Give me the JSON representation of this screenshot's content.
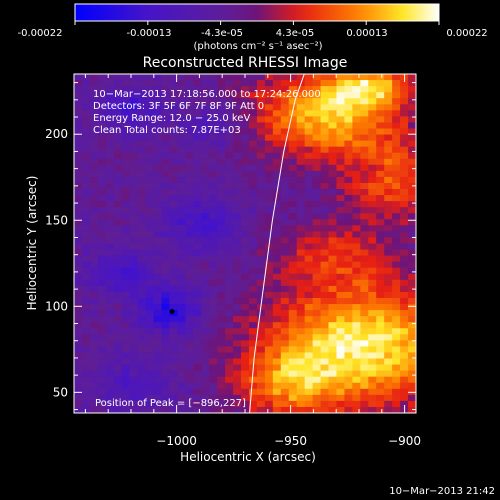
{
  "colorbar": {
    "ticks": [
      "-0.00022",
      "-0.00013",
      "-4.3e-05",
      "4.3e-05",
      "0.00013",
      "0.00022"
    ],
    "unit_label": "(photons cm⁻² s⁻¹ asec⁻²)",
    "range": [
      -0.00022,
      0.00022
    ]
  },
  "chart_data": {
    "type": "heatmap",
    "title": "Reconstructed RHESSI Image",
    "xlabel": "Heliocentric X (arcsec)",
    "ylabel": "Heliocentric Y (arcsec)",
    "xlim": [
      -1045,
      -895
    ],
    "ylim": [
      38,
      235
    ],
    "x_ticks": [
      -1000,
      -950,
      -900
    ],
    "y_ticks": [
      50,
      100,
      150,
      200
    ],
    "x_tick_labels": [
      "−1000",
      "−950",
      "−900"
    ],
    "y_tick_labels": [
      "50",
      "100",
      "150",
      "200"
    ],
    "annotations": [
      "10−Mar−2013 17:18:56.000 to 17:24:26.000",
      "Detectors: 3F 5F 6F 7F 8F 9F Att 0",
      "Energy Range: 12.0 − 25.0 keV",
      "Clean     Total counts: 7.87E+03"
    ],
    "peak_label": "Position of Peak = [−896,227]",
    "peak_position": [
      -896,
      227
    ],
    "min_marker": [
      -1002,
      97
    ],
    "limb_curve": [
      [
        -968,
        38
      ],
      [
        -966,
        70
      ],
      [
        -962,
        110
      ],
      [
        -958,
        150
      ],
      [
        -953,
        190
      ],
      [
        -948,
        220
      ],
      [
        -944,
        235
      ]
    ],
    "hot_regions": [
      {
        "x": -935,
        "y": 212,
        "sx": 22,
        "sy": 17,
        "amp": 1.25
      },
      {
        "x": -908,
        "y": 175,
        "sx": 13,
        "sy": 16,
        "amp": 0.85
      },
      {
        "x": -915,
        "y": 228,
        "sx": 12,
        "sy": 9,
        "amp": 0.95
      },
      {
        "x": -918,
        "y": 78,
        "sx": 30,
        "sy": 24,
        "amp": 1.45
      },
      {
        "x": -950,
        "y": 55,
        "sx": 16,
        "sy": 14,
        "amp": 0.75
      },
      {
        "x": -930,
        "y": 130,
        "sx": 18,
        "sy": 13,
        "amp": 0.55
      }
    ],
    "cold_regions": [
      {
        "x": -1003,
        "y": 98,
        "sx": 10,
        "sy": 10,
        "amp": 0.9
      },
      {
        "x": -1025,
        "y": 120,
        "sx": 10,
        "sy": 9,
        "amp": 0.55
      },
      {
        "x": -990,
        "y": 148,
        "sx": 12,
        "sy": 12,
        "amp": 0.55
      },
      {
        "x": -1020,
        "y": 215,
        "sx": 10,
        "sy": 9,
        "amp": 0.6
      },
      {
        "x": -985,
        "y": 205,
        "sx": 9,
        "sy": 9,
        "amp": 0.45
      },
      {
        "x": -1020,
        "y": 55,
        "sx": 14,
        "sy": 12,
        "amp": 0.4
      },
      {
        "x": -915,
        "y": 180,
        "sx": 6,
        "sy": 6,
        "amp": 0.3
      }
    ]
  },
  "timestamp": "10−Mar−2013 21:42"
}
